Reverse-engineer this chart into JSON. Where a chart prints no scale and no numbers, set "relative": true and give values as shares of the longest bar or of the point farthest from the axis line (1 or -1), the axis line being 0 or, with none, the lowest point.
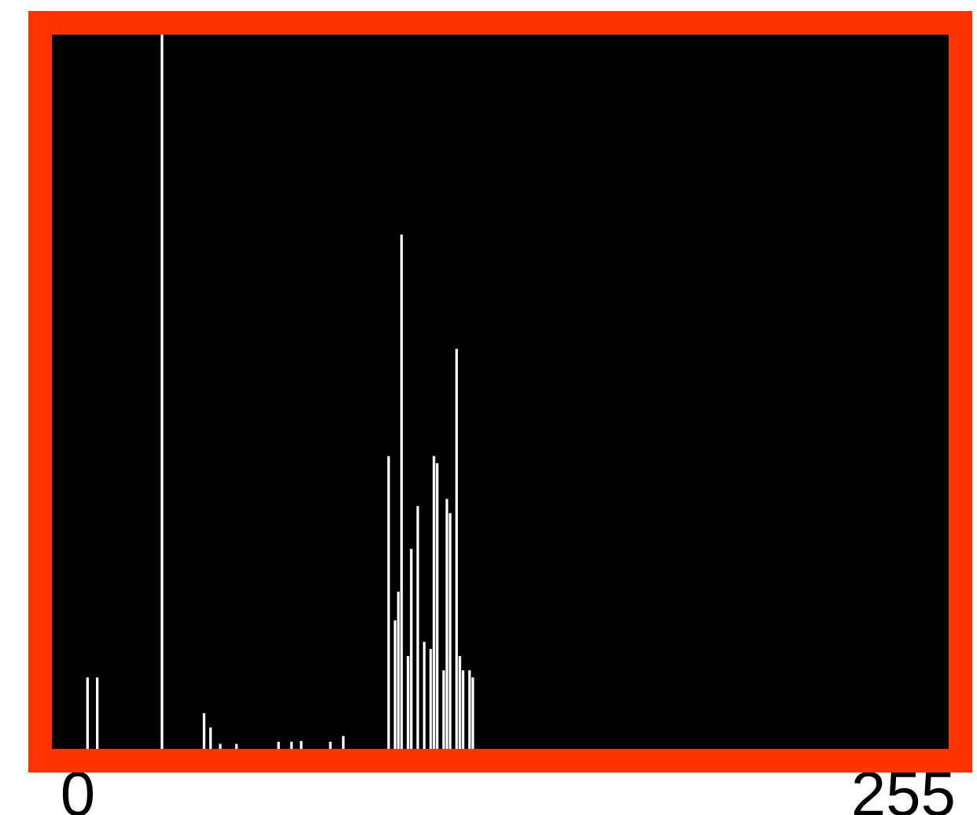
{
  "chart_data": {
    "type": "bar",
    "relative": true,
    "color": "#ffffff",
    "x": [
      3,
      6,
      26,
      39,
      41,
      44,
      49,
      62,
      66,
      69,
      78,
      82,
      96,
      98,
      99,
      100,
      102,
      103,
      105,
      107,
      109,
      110,
      111,
      113,
      114,
      115,
      117,
      118,
      119,
      121,
      122
    ],
    "values": [
      0.1,
      0.1,
      1.0,
      0.05,
      0.03,
      0.007,
      0.007,
      0.01,
      0.01,
      0.011,
      0.01,
      0.018,
      0.41,
      0.18,
      0.22,
      0.72,
      0.13,
      0.28,
      0.34,
      0.15,
      0.14,
      0.41,
      0.4,
      0.11,
      0.35,
      0.33,
      0.56,
      0.13,
      0.11,
      0.11,
      0.1
    ],
    "xlim": [
      -8,
      269
    ],
    "xticks": [
      0,
      255
    ]
  }
}
